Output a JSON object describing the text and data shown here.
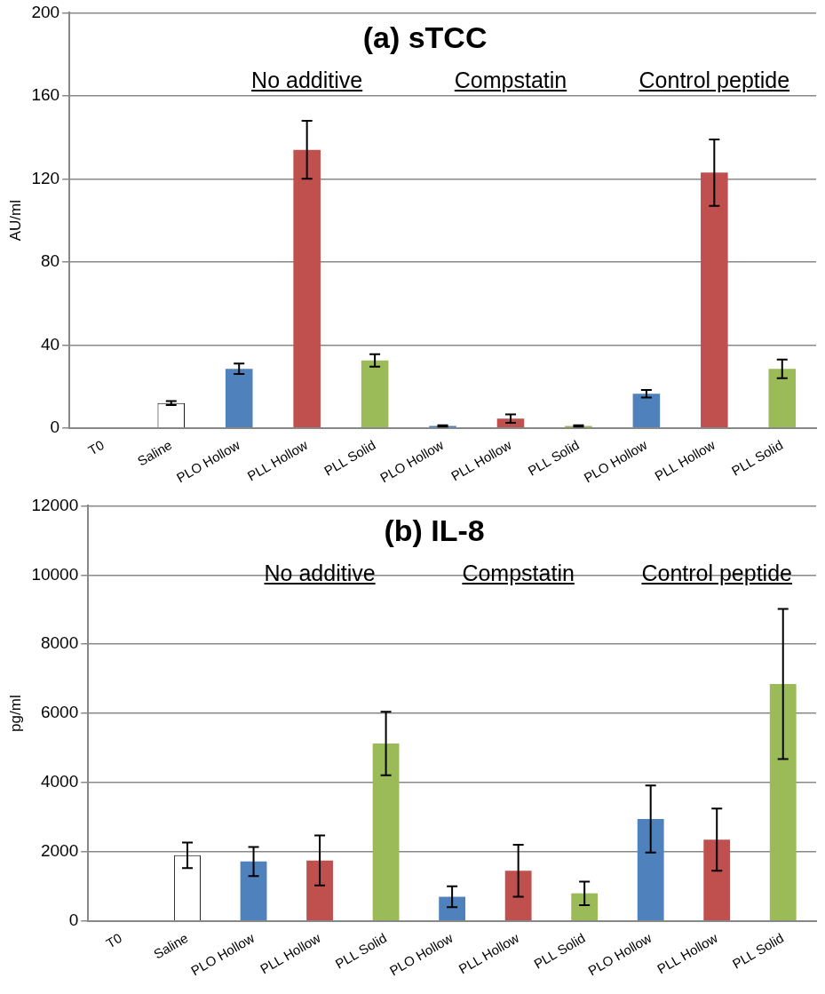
{
  "chart_data": [
    {
      "type": "bar",
      "title": "(a) sTCC",
      "ylabel": "AU/ml",
      "categories": [
        "T0",
        "Saline",
        "PLO Hollow",
        "PLL Hollow",
        "PLL Solid",
        "PLO Hollow",
        "PLL Hollow",
        "PLL Solid",
        "PLO Hollow",
        "PLL Hollow",
        "PLL Solid"
      ],
      "values": [
        0.5,
        12,
        28.5,
        134,
        32.5,
        1,
        4.5,
        1,
        16.5,
        123,
        28.5
      ],
      "errors": [
        null,
        1,
        2.5,
        14,
        3,
        0.3,
        2,
        0.3,
        1.8,
        16,
        4.5
      ],
      "colors": [
        "#ffffff",
        "#ffffff",
        "#4f81bd",
        "#c0504d",
        "#9bbb59",
        "#4f81bd",
        "#c0504d",
        "#9bbb59",
        "#4f81bd",
        "#c0504d",
        "#9bbb59"
      ],
      "ylim": [
        0,
        200
      ],
      "yticks": [
        0,
        40,
        80,
        120,
        160,
        200
      ],
      "grid": "y",
      "legend": false,
      "annotations": [
        "No additive",
        "Compstatin",
        "Control peptide"
      ]
    },
    {
      "type": "bar",
      "title": "(b) IL-8",
      "ylabel": "pg/ml",
      "categories": [
        "T0",
        "Saline",
        "PLO Hollow",
        "PLL Hollow",
        "PLL Solid",
        "PLO Hollow",
        "PLL Hollow",
        "PLL Solid",
        "PLO Hollow",
        "PLL Hollow",
        "PLL Solid"
      ],
      "values": [
        20,
        1900,
        1720,
        1750,
        5130,
        700,
        1450,
        800,
        2950,
        2350,
        6850
      ],
      "errors": [
        null,
        370,
        420,
        720,
        920,
        300,
        750,
        340,
        970,
        900,
        2170
      ],
      "colors": [
        "#ffffff",
        "#ffffff",
        "#4f81bd",
        "#c0504d",
        "#9bbb59",
        "#4f81bd",
        "#c0504d",
        "#9bbb59",
        "#4f81bd",
        "#c0504d",
        "#9bbb59"
      ],
      "ylim": [
        0,
        12000
      ],
      "yticks": [
        0,
        2000,
        4000,
        6000,
        8000,
        10000,
        12000
      ],
      "grid": "y",
      "legend": false,
      "annotations": [
        "No additive",
        "Compstatin",
        "Control peptide"
      ]
    }
  ]
}
